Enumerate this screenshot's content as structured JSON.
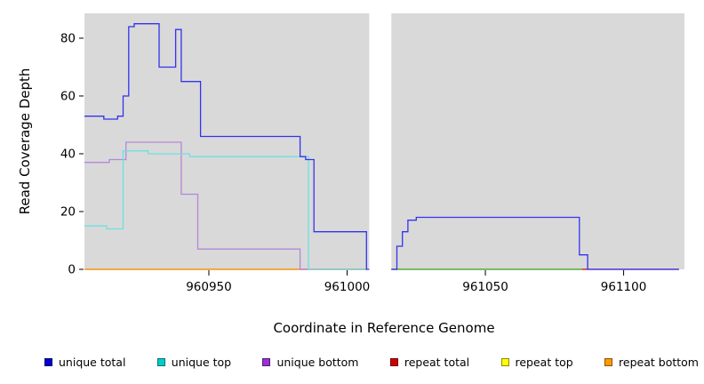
{
  "chart_data": {
    "type": "line",
    "subtype": "step-coverage-plot",
    "title": "",
    "xlabel": "Coordinate in Reference Genome",
    "ylabel": "Read Coverage Depth",
    "xlim": [
      960905,
      961122
    ],
    "ylim": [
      0,
      88.6
    ],
    "x_ticks": [
      960950,
      961000,
      961050,
      961100
    ],
    "y_ticks": [
      0,
      20,
      40,
      60,
      80
    ],
    "grid": false,
    "legend_position": "bottom",
    "panel_color": "#D9D9D9",
    "gap_region": {
      "x0": 961008,
      "x1": 961016,
      "color": "#FFFFFF"
    },
    "series": [
      {
        "name": "repeat total",
        "color": "#CC0000",
        "segments": [
          [
            [
              960905,
              0
            ],
            [
              961007,
              0
            ]
          ],
          [
            [
              961016,
              0
            ],
            [
              961120,
              0
            ]
          ]
        ]
      },
      {
        "name": "repeat top",
        "color": "#3FBF3F",
        "segments": [
          [
            [
              961016,
              0
            ],
            [
              961085,
              0
            ]
          ]
        ]
      },
      {
        "name": "repeat bottom",
        "color": "#FFA500",
        "segments": [
          [
            [
              960905,
              0
            ],
            [
              961007,
              0
            ]
          ]
        ]
      },
      {
        "name": "unique bottom",
        "color": "#B388D9",
        "segments": [
          [
            [
              960905,
              37
            ],
            [
              960914,
              37
            ],
            [
              960914,
              38
            ],
            [
              960920,
              38
            ],
            [
              960920,
              44
            ],
            [
              960940,
              44
            ],
            [
              960940,
              26
            ],
            [
              960946,
              26
            ],
            [
              960946,
              7
            ],
            [
              960983,
              7
            ],
            [
              960983,
              0
            ],
            [
              961007,
              0
            ]
          ]
        ]
      },
      {
        "name": "unique top",
        "color": "#6FE0E0",
        "segments": [
          [
            [
              960905,
              15
            ],
            [
              960913,
              15
            ],
            [
              960913,
              14
            ],
            [
              960919,
              14
            ],
            [
              960919,
              41
            ],
            [
              960928,
              41
            ],
            [
              960928,
              40
            ],
            [
              960943,
              40
            ],
            [
              960943,
              39
            ],
            [
              960986,
              39
            ],
            [
              960986,
              0
            ],
            [
              961007,
              0
            ]
          ]
        ]
      },
      {
        "name": "unique total",
        "color": "#3333EE",
        "segments": [
          [
            [
              960905,
              53
            ],
            [
              960912,
              53
            ],
            [
              960912,
              52
            ],
            [
              960917,
              52
            ],
            [
              960917,
              53
            ],
            [
              960919,
              53
            ],
            [
              960919,
              60
            ],
            [
              960921,
              60
            ],
            [
              960921,
              84
            ],
            [
              960923,
              84
            ],
            [
              960923,
              85
            ],
            [
              960932,
              85
            ],
            [
              960932,
              70
            ],
            [
              960938,
              70
            ],
            [
              960938,
              83
            ],
            [
              960940,
              83
            ],
            [
              960940,
              65
            ],
            [
              960947,
              65
            ],
            [
              960947,
              46
            ],
            [
              960983,
              46
            ],
            [
              960983,
              39
            ],
            [
              960985,
              39
            ],
            [
              960985,
              38
            ],
            [
              960988,
              38
            ],
            [
              960988,
              13
            ],
            [
              961007,
              13
            ],
            [
              961007,
              0
            ],
            [
              961008,
              0
            ]
          ],
          [
            [
              961016,
              0
            ],
            [
              961018,
              0
            ],
            [
              961018,
              8
            ],
            [
              961020,
              8
            ],
            [
              961020,
              13
            ],
            [
              961022,
              13
            ],
            [
              961022,
              17
            ],
            [
              961025,
              17
            ],
            [
              961025,
              18
            ],
            [
              961084,
              18
            ],
            [
              961084,
              5
            ],
            [
              961087,
              5
            ],
            [
              961087,
              0
            ],
            [
              961120,
              0
            ]
          ]
        ]
      }
    ],
    "legend": [
      {
        "label": "unique total",
        "color": "#0000CC"
      },
      {
        "label": "unique top",
        "color": "#00CCCC"
      },
      {
        "label": "unique bottom",
        "color": "#9933CC"
      },
      {
        "label": "repeat total",
        "color": "#CC0000"
      },
      {
        "label": "repeat top",
        "color": "#FFFF00"
      },
      {
        "label": "repeat bottom",
        "color": "#FF9900"
      }
    ]
  }
}
